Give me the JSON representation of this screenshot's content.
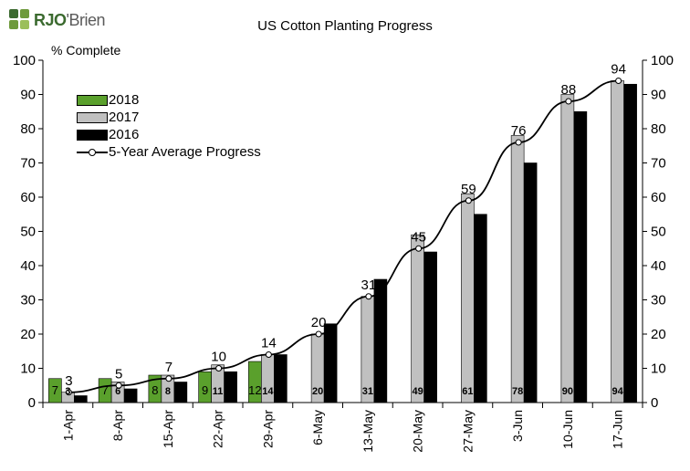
{
  "brand": {
    "logo_main": "RJO",
    "logo_rest": "'Brien"
  },
  "chart_data": {
    "type": "bar",
    "title": "US Cotton Planting Progress",
    "ylabel": "% Complete",
    "ylim": [
      0,
      100
    ],
    "yticks": [
      0,
      10,
      20,
      30,
      40,
      50,
      60,
      70,
      80,
      90,
      100
    ],
    "categories": [
      "1-Apr",
      "8-Apr",
      "15-Apr",
      "22-Apr",
      "29-Apr",
      "6-May",
      "13-May",
      "20-May",
      "27-May",
      "3-Jun",
      "10-Jun",
      "17-Jun"
    ],
    "series": [
      {
        "name": "2018",
        "type": "bar",
        "color": "#5aa02c",
        "values": [
          7,
          7,
          8,
          9,
          12,
          null,
          null,
          null,
          null,
          null,
          null,
          null
        ]
      },
      {
        "name": "2017",
        "type": "bar",
        "color": "#c0c0c0",
        "values": [
          3,
          6,
          8,
          11,
          14,
          20,
          31,
          49,
          61,
          78,
          90,
          94
        ]
      },
      {
        "name": "2016",
        "type": "bar",
        "color": "#000000",
        "values": [
          2,
          4,
          6,
          9,
          14,
          23,
          36,
          44,
          55,
          70,
          85,
          93
        ]
      },
      {
        "name": "5-Year Average Progress",
        "type": "line",
        "color": "#000000",
        "values": [
          3,
          5,
          7,
          10,
          14,
          20,
          31,
          45,
          59,
          76,
          88,
          94
        ]
      }
    ],
    "legend_position": "top-left",
    "grid": false,
    "secondary_axis": true
  }
}
